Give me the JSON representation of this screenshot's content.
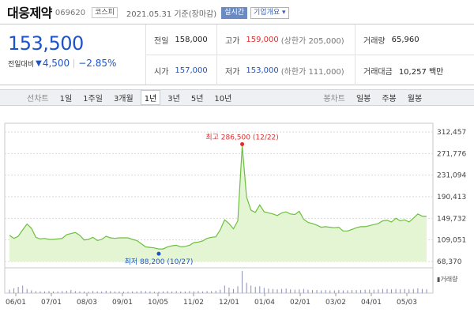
{
  "header": {
    "name": "대웅제약",
    "code": "069620",
    "market": "코스피",
    "date": "2021.05.31  기준(장마감)",
    "live_label": "실시간",
    "company_label": "기업개요 ▾"
  },
  "price": {
    "current": "153,500",
    "change_label": "전일대비",
    "change_arrow": "▼",
    "change_value": "4,500",
    "change_pct": "−2.85%",
    "rows": [
      {
        "k": "전일",
        "v": "158,000",
        "tone": "",
        "sub": ""
      },
      {
        "k": "고가",
        "v": "159,000",
        "tone": "up",
        "sub": "(상한가 205,000)"
      },
      {
        "k": "거래량",
        "v": "65,960",
        "tone": "",
        "sub": ""
      },
      {
        "k": "시가",
        "v": "157,000",
        "tone": "dn",
        "sub": ""
      },
      {
        "k": "저가",
        "v": "153,000",
        "tone": "dn",
        "sub": "(하한가 111,000)"
      },
      {
        "k": "거래대금",
        "v": "10,257 백만",
        "tone": "",
        "sub": ""
      }
    ]
  },
  "tabs": {
    "line_label": "선차트",
    "line_items": [
      "1일",
      "1주일",
      "3개월",
      "1년",
      "3년",
      "5년",
      "10년"
    ],
    "active": "1년",
    "candle_label": "봉차트",
    "candle_items": [
      "일봉",
      "주봉",
      "월봉"
    ]
  },
  "chart_data": {
    "type": "area",
    "y_ticks": [
      "312,457",
      "271,776",
      "231,094",
      "190,413",
      "149,732",
      "109,051",
      "68,370"
    ],
    "ylim": [
      68370,
      312457
    ],
    "x_ticks": [
      "06/01",
      "07/01",
      "08/03",
      "09/01",
      "10/05",
      "11/02",
      "12/01",
      "01/04",
      "02/01",
      "03/02",
      "04/01",
      "05/03"
    ],
    "high_label": "최고 286,500 (12/22)",
    "low_label": "최저 88,200 (10/27)",
    "volume_label": "거래량",
    "colors": {
      "line": "#6dbf3f",
      "fill": "#e3f5d3",
      "high": "#e12d2d",
      "low": "#1d53c9",
      "volume": "#8a8fb8",
      "grid": "#d9d9d9"
    },
    "series": [
      {
        "values": [
          118000,
          112000,
          116000,
          128000,
          139000,
          131000,
          114000,
          111000,
          112000,
          110000,
          110000,
          111000,
          112000,
          119000,
          121000,
          123000,
          118000,
          109000,
          110000,
          114000,
          108000,
          110000,
          116000,
          113000,
          112000,
          113000,
          113000,
          113000,
          110000,
          108000,
          102000,
          96000,
          95000,
          94000,
          92000,
          92000,
          96000,
          98000,
          99000,
          96000,
          97000,
          99000,
          104000,
          105000,
          107000,
          112000,
          114000,
          115000,
          128000,
          147000,
          140000,
          130000,
          145000,
          286500,
          190000,
          165000,
          161000,
          175000,
          162000,
          160000,
          158000,
          155000,
          160000,
          162000,
          158000,
          157000,
          163000,
          148000,
          142000,
          140000,
          137000,
          133000,
          134000,
          133000,
          132000,
          133000,
          126000,
          126000,
          129000,
          132000,
          134000,
          134000,
          136000,
          138000,
          140000,
          145000,
          146000,
          143000,
          150000,
          145000,
          147000,
          143000,
          150000,
          158000,
          154000,
          153500
        ]
      }
    ],
    "volume": [
      10,
      14,
      18,
      22,
      12,
      8,
      6,
      5,
      5,
      6,
      5,
      5,
      6,
      7,
      9,
      6,
      5,
      5,
      4,
      6,
      5,
      5,
      7,
      6,
      5,
      5,
      4,
      4,
      5,
      5,
      7,
      6,
      5,
      4,
      4,
      5,
      6,
      5,
      6,
      5,
      5,
      6,
      5,
      6,
      5,
      6,
      6,
      7,
      10,
      22,
      16,
      12,
      20,
      64,
      30,
      22,
      18,
      20,
      15,
      13,
      12,
      11,
      12,
      13,
      11,
      10,
      11,
      12,
      10,
      9,
      9,
      8,
      9,
      8,
      8,
      9,
      8,
      8,
      9,
      9,
      9,
      10,
      10,
      10,
      11,
      12,
      12,
      11,
      12,
      11,
      12,
      11,
      12,
      14,
      12,
      11
    ]
  }
}
